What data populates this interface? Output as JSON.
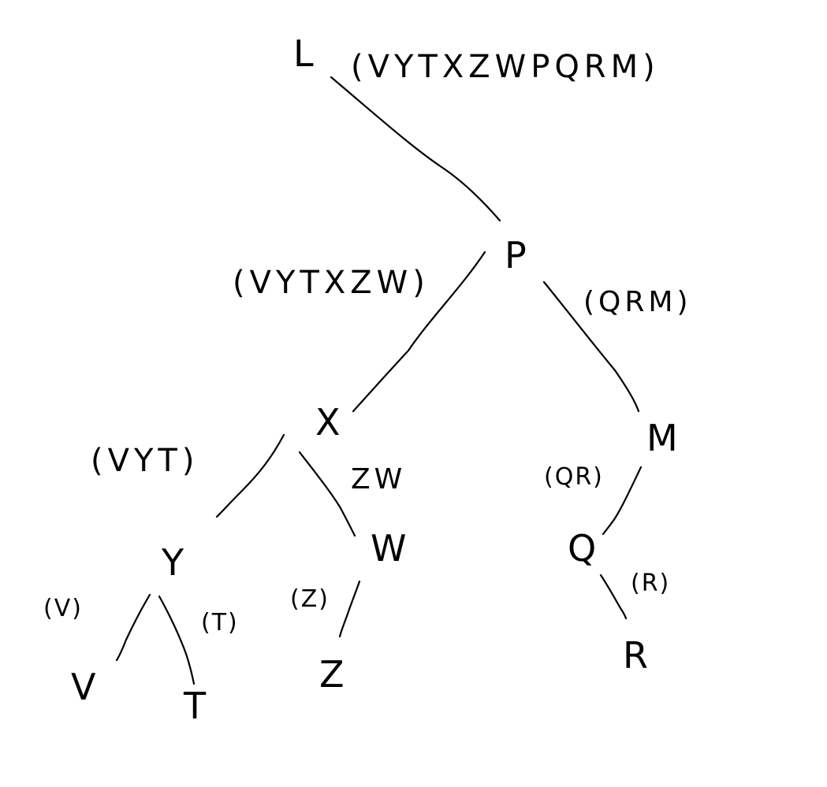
{
  "diagram": {
    "nodes": {
      "root": "L",
      "p": "P",
      "x": "X",
      "m": "M",
      "y": "Y",
      "w": "W",
      "q": "Q",
      "v": "V",
      "t": "T",
      "z": "Z",
      "r": "R"
    },
    "edge_labels": {
      "root_p": "(VYTXZWPQRM)",
      "p_x": "(VYTXZW)",
      "p_m": "(QRM)",
      "x_y": "(VYT)",
      "x_w": "ZW",
      "m_q": "(QR)",
      "y_v": "(V)",
      "y_t": "(T)",
      "w_z": "(Z)",
      "q_r": "(R)"
    }
  }
}
